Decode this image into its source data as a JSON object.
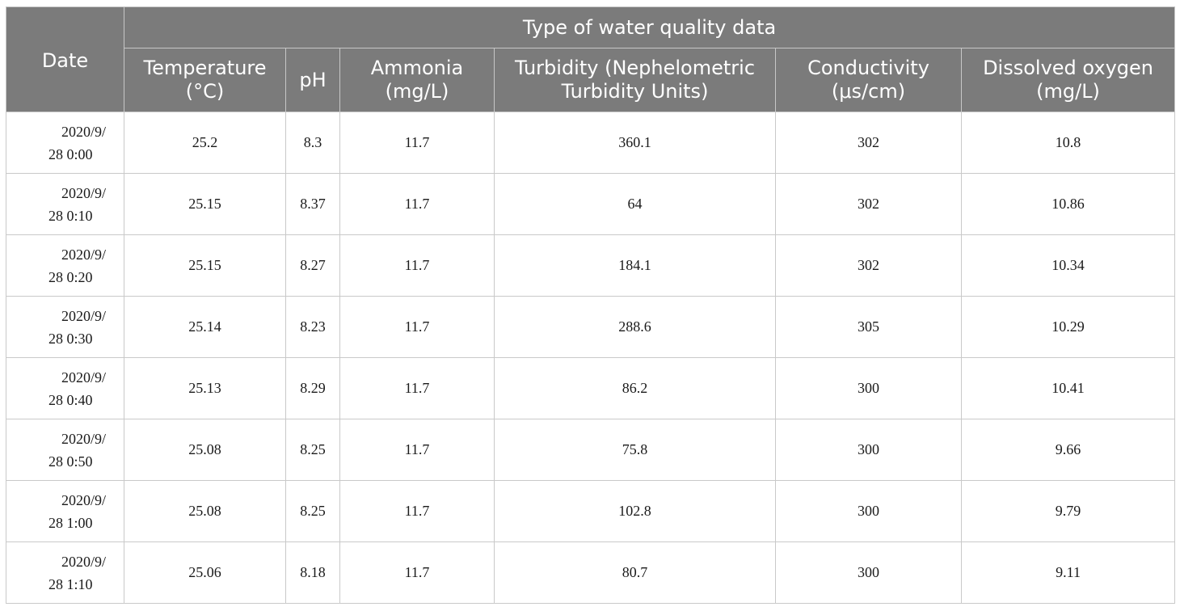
{
  "table": {
    "date_header": "Date",
    "group_header": "Type of water quality data",
    "columns": [
      {
        "line1": "Temperature",
        "line2": "(°C)"
      },
      {
        "line1": "pH",
        "line2": ""
      },
      {
        "line1": "Ammonia",
        "line2": "(mg/L)"
      },
      {
        "line1": "Turbidity (Nephelometric",
        "line2": "Turbidity Units)"
      },
      {
        "line1": "Conductivity",
        "line2": "(μs/cm)"
      },
      {
        "line1": "Dissolved oxygen",
        "line2": "(mg/L)"
      }
    ],
    "rows": [
      {
        "date_line1": "2020/9/",
        "date_line2": "28 0:00",
        "temperature": "25.2",
        "ph": "8.3",
        "ammonia": "11.7",
        "turbidity": "360.1",
        "conductivity": "302",
        "dissolved_oxygen": "10.8"
      },
      {
        "date_line1": "2020/9/",
        "date_line2": "28 0:10",
        "temperature": "25.15",
        "ph": "8.37",
        "ammonia": "11.7",
        "turbidity": "64",
        "conductivity": "302",
        "dissolved_oxygen": "10.86"
      },
      {
        "date_line1": "2020/9/",
        "date_line2": "28 0:20",
        "temperature": "25.15",
        "ph": "8.27",
        "ammonia": "11.7",
        "turbidity": "184.1",
        "conductivity": "302",
        "dissolved_oxygen": "10.34"
      },
      {
        "date_line1": "2020/9/",
        "date_line2": "28 0:30",
        "temperature": "25.14",
        "ph": "8.23",
        "ammonia": "11.7",
        "turbidity": "288.6",
        "conductivity": "305",
        "dissolved_oxygen": "10.29"
      },
      {
        "date_line1": "2020/9/",
        "date_line2": "28 0:40",
        "temperature": "25.13",
        "ph": "8.29",
        "ammonia": "11.7",
        "turbidity": "86.2",
        "conductivity": "300",
        "dissolved_oxygen": "10.41"
      },
      {
        "date_line1": "2020/9/",
        "date_line2": "28 0:50",
        "temperature": "25.08",
        "ph": "8.25",
        "ammonia": "11.7",
        "turbidity": "75.8",
        "conductivity": "300",
        "dissolved_oxygen": "9.66"
      },
      {
        "date_line1": "2020/9/",
        "date_line2": "28 1:00",
        "temperature": "25.08",
        "ph": "8.25",
        "ammonia": "11.7",
        "turbidity": "102.8",
        "conductivity": "300",
        "dissolved_oxygen": "9.79"
      },
      {
        "date_line1": "2020/9/",
        "date_line2": "28 1:10",
        "temperature": "25.06",
        "ph": "8.18",
        "ammonia": "11.7",
        "turbidity": "80.7",
        "conductivity": "300",
        "dissolved_oxygen": "9.11"
      }
    ]
  }
}
